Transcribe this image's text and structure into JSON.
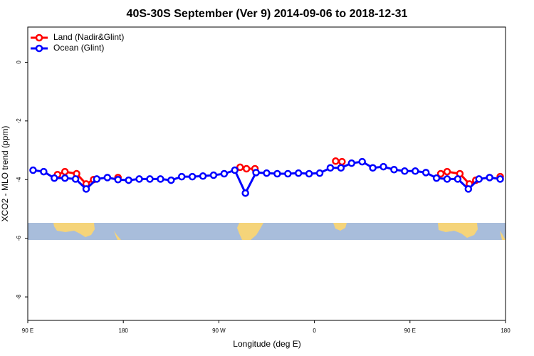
{
  "chart_data": {
    "type": "line",
    "title": "40S-30S September (Ver 9)   2014-09-06 to 2018-12-31",
    "x_label": "Longitude (deg E)",
    "y_label": "XCO2 - MLO trend (ppm)",
    "xlim": [
      90,
      540
    ],
    "xticks": [
      {
        "value": 90,
        "label": "90 E"
      },
      {
        "value": 180,
        "label": "180"
      },
      {
        "value": 270,
        "label": "90 W"
      },
      {
        "value": 360,
        "label": "0"
      },
      {
        "value": 450,
        "label": "90 E"
      },
      {
        "value": 540,
        "label": "180"
      }
    ],
    "ylim": [
      -8.8,
      1.2
    ],
    "yticks": [
      0,
      -2,
      -4,
      -6,
      -8
    ],
    "legend": "top-left",
    "series": [
      {
        "name": "Land (Nadir&Glint)",
        "color": "#ff0000",
        "x": [
          118,
          125,
          136,
          145,
          152,
          165,
          175,
          185,
          290,
          296,
          304,
          315,
          380,
          386,
          395,
          479,
          485,
          497,
          506,
          512,
          525,
          535
        ],
        "values": [
          -3.83,
          -3.73,
          -3.8,
          -4.15,
          -4.0,
          null,
          -3.93,
          null,
          -3.58,
          -3.63,
          -3.63,
          null,
          -3.37,
          -3.39,
          null,
          -3.8,
          -3.73,
          -3.8,
          -4.15,
          -4.02,
          null,
          -3.9
        ]
      },
      {
        "name": "Ocean (Glint)",
        "color": "#0000ff",
        "x": [
          95,
          105,
          115,
          125,
          135,
          145,
          155,
          165,
          175,
          185,
          195,
          205,
          215,
          225,
          235,
          245,
          255,
          265,
          275,
          285,
          295,
          305,
          315,
          325,
          335,
          345,
          355,
          365,
          375,
          385,
          395,
          405,
          415,
          425,
          435,
          445,
          455,
          465,
          475,
          485,
          495,
          505,
          515,
          525,
          535
        ],
        "values": [
          -3.68,
          -3.73,
          -3.95,
          -3.95,
          -3.98,
          -4.32,
          -3.98,
          -3.93,
          -4.0,
          -4.02,
          -3.98,
          -3.98,
          -3.98,
          -4.02,
          -3.9,
          -3.9,
          -3.88,
          -3.85,
          -3.8,
          -3.68,
          -4.46,
          -3.76,
          -3.78,
          -3.8,
          -3.8,
          -3.78,
          -3.8,
          -3.78,
          -3.6,
          -3.6,
          -3.44,
          -3.39,
          -3.6,
          -3.56,
          -3.66,
          -3.71,
          -3.71,
          -3.76,
          -3.95,
          -3.98,
          -3.98,
          -4.32,
          -3.98,
          -3.93,
          -3.98
        ]
      }
    ]
  }
}
